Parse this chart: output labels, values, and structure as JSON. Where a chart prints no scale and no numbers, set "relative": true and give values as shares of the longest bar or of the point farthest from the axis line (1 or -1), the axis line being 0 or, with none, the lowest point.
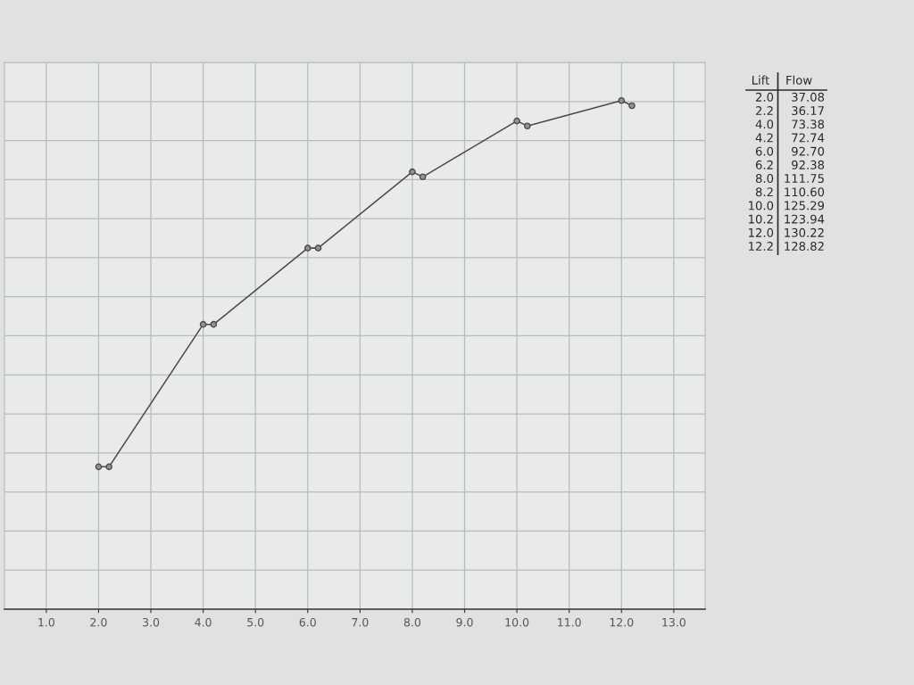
{
  "chart_data": [
    {
      "type": "line",
      "relative": true,
      "x": [
        2.0,
        2.2,
        4.0,
        4.2,
        6.0,
        6.2,
        8.0,
        8.2,
        10.0,
        10.2,
        12.0,
        12.2
      ],
      "values": [
        0.28,
        0.28,
        0.56,
        0.56,
        0.71,
        0.71,
        0.86,
        0.85,
        0.96,
        0.95,
        1,
        0.99
      ],
      "color": "#4a4a4a",
      "marker": "circle",
      "line_style": "solid",
      "xlim": [
        0.2,
        13.6
      ],
      "xticks": [
        {
          "value": 1,
          "label": "1.0"
        },
        {
          "value": 2,
          "label": "2.0"
        },
        {
          "value": 3,
          "label": "3.0"
        },
        {
          "value": 4,
          "label": "4.0"
        },
        {
          "value": 5,
          "label": "5.0"
        },
        {
          "value": 6,
          "label": "6.0"
        },
        {
          "value": 7,
          "label": "7.0"
        },
        {
          "value": 8,
          "label": "8.0"
        },
        {
          "value": 9,
          "label": "9.0"
        },
        {
          "value": 10,
          "label": "10.0"
        },
        {
          "value": 11,
          "label": "11.0"
        },
        {
          "value": 12,
          "label": "12.0"
        },
        {
          "value": 13,
          "label": "13.0"
        }
      ],
      "grid": true
    },
    {
      "type": "other",
      "annotations": [
        "Lift",
        "Flow"
      ],
      "categories": [
        "2.0",
        "2.2",
        "4.0",
        "4.2",
        "6.0",
        "6.2",
        "8.0",
        "8.2",
        "10.0",
        "10.2",
        "12.0",
        "12.2"
      ],
      "values": [
        37.08,
        36.17,
        73.38,
        72.74,
        92.7,
        92.38,
        111.75,
        110.6,
        125.29,
        123.94,
        130.22,
        128.82
      ],
      "value_labels": [
        "37.08",
        "36.17",
        "73.38",
        "72.74",
        "92.70",
        "92.38",
        "111.75",
        "110.60",
        "125.29",
        "123.94",
        "130.22",
        "128.82"
      ]
    }
  ]
}
